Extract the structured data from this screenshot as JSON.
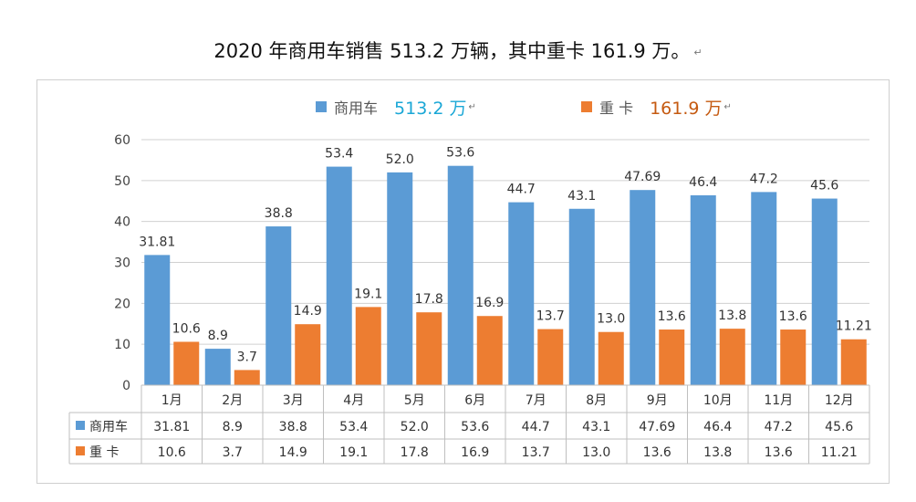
{
  "title": {
    "text": "2020 年商用车销售 513.2 万辆，其中重卡 161.9 万。",
    "mark": "↵"
  },
  "legend": {
    "items": [
      {
        "name": "商用车",
        "total": "513.2 万",
        "mark": "↵",
        "color": "#5b9bd5",
        "total_color": "#1aa7d6"
      },
      {
        "name": "重 卡",
        "total": "161.9 万",
        "mark": "↵",
        "color": "#ed7d31",
        "total_color": "#c55a11"
      }
    ]
  },
  "chart_data": {
    "type": "bar",
    "categories": [
      "1月",
      "2月",
      "3月",
      "4月",
      "5月",
      "6月",
      "7月",
      "8月",
      "9月",
      "10月",
      "11月",
      "12月"
    ],
    "series": [
      {
        "name": "商用车",
        "color": "#5b9bd5",
        "values": [
          31.81,
          8.9,
          38.8,
          53.4,
          52.0,
          53.6,
          44.7,
          43.1,
          47.69,
          46.4,
          47.2,
          45.6
        ],
        "labels": [
          "31.81",
          "8.9",
          "38.8",
          "53.4",
          "52.0",
          "53.6",
          "44.7",
          "43.1",
          "47.69",
          "46.4",
          "47.2",
          "45.6"
        ]
      },
      {
        "name": "重 卡",
        "color": "#ed7d31",
        "values": [
          10.6,
          3.7,
          14.9,
          19.1,
          17.8,
          16.9,
          13.7,
          13.0,
          13.6,
          13.8,
          13.6,
          11.21
        ],
        "labels": [
          "10.6",
          "3.7",
          "14.9",
          "19.1",
          "17.8",
          "16.9",
          "13.7",
          "13.0",
          "13.6",
          "13.8",
          "13.6",
          "11.21"
        ]
      }
    ],
    "ylim": [
      0,
      60
    ],
    "yticks": [
      0,
      10,
      20,
      30,
      40,
      50,
      60
    ],
    "grid": true,
    "data_table": true,
    "legend_position": "top"
  }
}
